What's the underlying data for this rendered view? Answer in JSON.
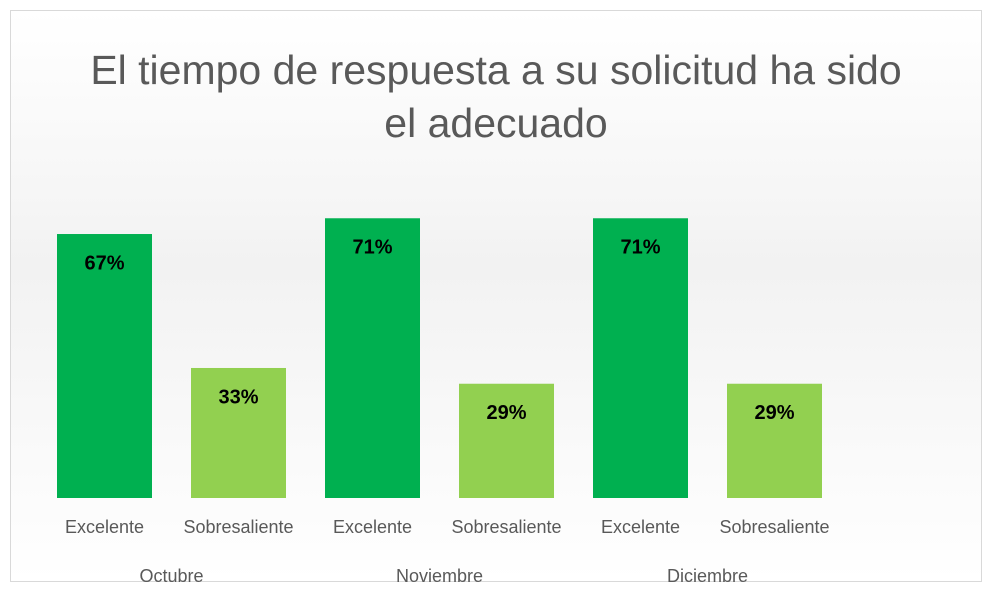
{
  "chart_data": {
    "type": "bar",
    "title": "El tiempo de respuesta a su solicitud ha sido el adecuado",
    "categories": [
      "Octubre",
      "Noviembre",
      "Diciembre"
    ],
    "series": [
      {
        "name": "Excelente",
        "color": "#00b050",
        "values": [
          67,
          71,
          71
        ],
        "value_labels": [
          "67%",
          "71%",
          "71%"
        ]
      },
      {
        "name": "Sobresaliente",
        "color": "#92d050",
        "values": [
          33,
          29,
          29
        ],
        "value_labels": [
          "33%",
          "29%",
          "29%"
        ]
      }
    ]
  }
}
